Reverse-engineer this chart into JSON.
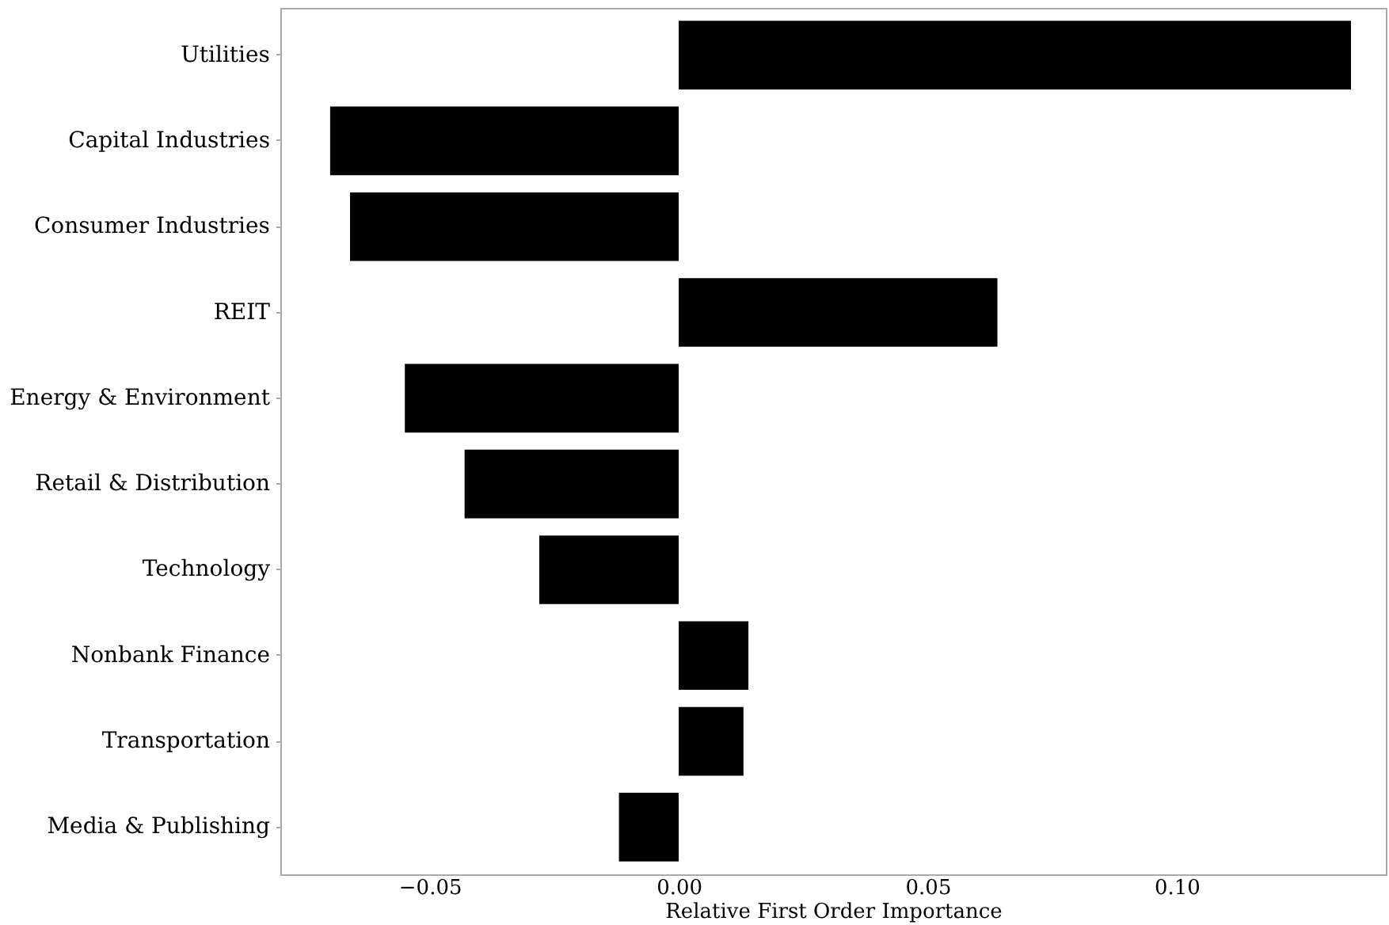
{
  "chart_data": {
    "type": "bar",
    "orientation": "horizontal",
    "xlabel": "Relative First Order Importance",
    "categories": [
      "Utilities",
      "Capital Industries",
      "Consumer Industries",
      "REIT",
      "Energy & Environment",
      "Retail & Distribution",
      "Technology",
      "Nonbank Finance",
      "Transportation",
      "Media & Publishing"
    ],
    "values": [
      0.135,
      -0.07,
      -0.066,
      0.064,
      -0.055,
      -0.043,
      -0.028,
      0.014,
      0.013,
      -0.012
    ],
    "color": "#000000",
    "xlim": [
      -0.08,
      0.142
    ],
    "xticks": [
      {
        "value": -0.05,
        "label": "−0.05"
      },
      {
        "value": 0.0,
        "label": "0.00"
      },
      {
        "value": 0.05,
        "label": "0.05"
      },
      {
        "value": 0.1,
        "label": "0.10"
      }
    ],
    "grid": false
  }
}
